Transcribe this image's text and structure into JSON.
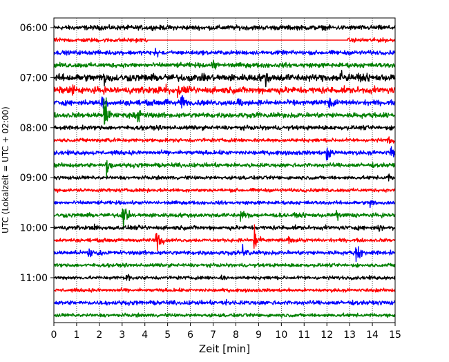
{
  "chart_data": {
    "type": "line",
    "title": "",
    "xlabel": "Zeit  [min]",
    "ylabel": "UTC (Lokalzeit = UTC + 02:00)",
    "xlim": [
      0,
      15
    ],
    "x_ticks": [
      0,
      1,
      2,
      3,
      4,
      5,
      6,
      7,
      8,
      9,
      10,
      11,
      12,
      13,
      14,
      15
    ],
    "x_tick_labels": [
      "0",
      "1",
      "2",
      "3",
      "4",
      "5",
      "6",
      "7",
      "8",
      "9",
      "10",
      "11",
      "12",
      "13",
      "14",
      "15"
    ],
    "y_tick_labels": [
      "06:00",
      "07:00",
      "08:00",
      "09:00",
      "10:00",
      "11:00"
    ],
    "grid_x": true,
    "trace_interval_min": 15,
    "trace_colors": [
      "#000000",
      "#ff0000",
      "#0000ff",
      "#008000"
    ],
    "traces": [
      {
        "start": "06:00",
        "noise": 0.2,
        "events": []
      },
      {
        "start": "06:15",
        "noise": 0.18,
        "gap": [
          4.1,
          12.9
        ],
        "events": []
      },
      {
        "start": "06:30",
        "noise": 0.18,
        "events": [
          {
            "t": 4.45,
            "amp": 0.6
          }
        ]
      },
      {
        "start": "06:45",
        "noise": 0.2,
        "events": [
          {
            "t": 7.0,
            "amp": 0.5
          }
        ]
      },
      {
        "start": "07:00",
        "noise": 0.3,
        "events": [
          {
            "t": 2.2,
            "amp": 0.7
          },
          {
            "t": 9.3,
            "amp": 0.8
          },
          {
            "t": 12.6,
            "amp": 0.7
          }
        ]
      },
      {
        "start": "07:15",
        "noise": 0.28,
        "events": [
          {
            "t": 0.8,
            "amp": 0.6
          },
          {
            "t": 4.9,
            "amp": 0.6
          },
          {
            "t": 5.4,
            "amp": 0.6
          }
        ]
      },
      {
        "start": "07:30",
        "noise": 0.22,
        "events": [
          {
            "t": 2.1,
            "amp": 0.8
          },
          {
            "t": 4.9,
            "amp": 1.1
          },
          {
            "t": 5.6,
            "amp": 0.9
          },
          {
            "t": 8.1,
            "amp": 0.7
          },
          {
            "t": 12.1,
            "amp": 0.7
          }
        ]
      },
      {
        "start": "07:45",
        "noise": 0.22,
        "events": [
          {
            "t": 2.2,
            "amp": 2.6
          },
          {
            "t": 3.7,
            "amp": 1.0
          },
          {
            "t": 9.0,
            "amp": 0.4
          }
        ]
      },
      {
        "start": "08:00",
        "noise": 0.18,
        "events": []
      },
      {
        "start": "08:15",
        "noise": 0.16,
        "events": [
          {
            "t": 2.3,
            "amp": 0.5
          },
          {
            "t": 14.7,
            "amp": 0.4
          }
        ]
      },
      {
        "start": "08:30",
        "noise": 0.18,
        "events": [
          {
            "t": 12.0,
            "amp": 1.3
          },
          {
            "t": 14.8,
            "amp": 0.6
          }
        ]
      },
      {
        "start": "08:45",
        "noise": 0.18,
        "events": [
          {
            "t": 2.3,
            "amp": 1.4
          }
        ]
      },
      {
        "start": "09:00",
        "noise": 0.15,
        "events": [
          {
            "t": 14.7,
            "amp": 0.4
          }
        ]
      },
      {
        "start": "09:15",
        "noise": 0.15,
        "events": []
      },
      {
        "start": "09:30",
        "noise": 0.15,
        "events": [
          {
            "t": 13.9,
            "amp": 0.5
          }
        ]
      },
      {
        "start": "09:45",
        "noise": 0.18,
        "events": [
          {
            "t": 3.0,
            "amp": 2.0
          },
          {
            "t": 8.2,
            "amp": 0.6
          },
          {
            "t": 12.4,
            "amp": 0.6
          }
        ]
      },
      {
        "start": "10:00",
        "noise": 0.18,
        "events": [
          {
            "t": 1.8,
            "amp": 0.4
          },
          {
            "t": 14.3,
            "amp": 0.4
          }
        ]
      },
      {
        "start": "10:15",
        "noise": 0.15,
        "events": [
          {
            "t": 4.5,
            "amp": 1.4
          },
          {
            "t": 8.8,
            "amp": 1.5
          },
          {
            "t": 10.3,
            "amp": 0.4
          }
        ]
      },
      {
        "start": "10:30",
        "noise": 0.18,
        "events": [
          {
            "t": 1.5,
            "amp": 1.0
          },
          {
            "t": 8.3,
            "amp": 0.9
          },
          {
            "t": 13.3,
            "amp": 1.2
          }
        ]
      },
      {
        "start": "10:45",
        "noise": 0.15,
        "events": []
      },
      {
        "start": "11:00",
        "noise": 0.15,
        "events": [
          {
            "t": 3.2,
            "amp": 0.6
          },
          {
            "t": 7.4,
            "amp": 0.6
          }
        ]
      },
      {
        "start": "11:15",
        "noise": 0.15,
        "events": []
      },
      {
        "start": "11:30",
        "noise": 0.18,
        "events": [
          {
            "t": 7.5,
            "amp": 0.4
          }
        ]
      },
      {
        "start": "11:45",
        "noise": 0.15,
        "events": []
      }
    ]
  }
}
